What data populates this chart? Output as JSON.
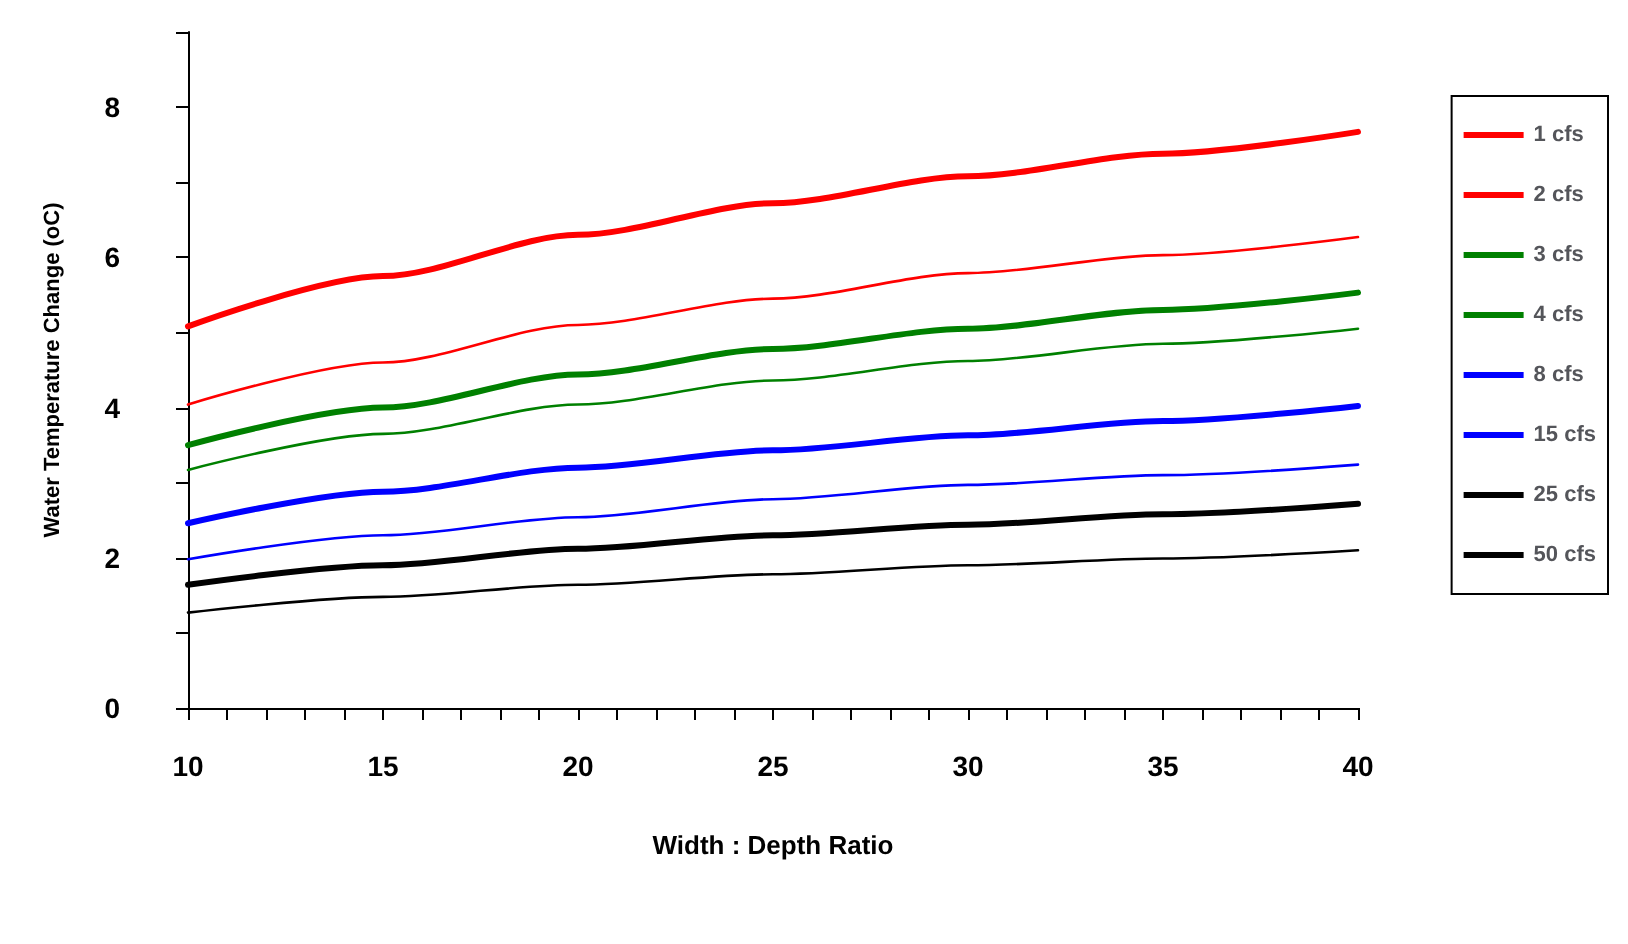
{
  "chart_data": {
    "type": "line",
    "xlabel": "Width : Depth Ratio",
    "ylabel": "Water Temperature Change (oC)",
    "x": [
      10,
      15,
      20,
      25,
      30,
      35,
      40
    ],
    "series": [
      {
        "name": "1 cfs",
        "color": "#ff0000",
        "values": [
          5.08,
          5.75,
          6.3,
          6.72,
          7.08,
          7.38,
          7.67
        ]
      },
      {
        "name": "2 cfs",
        "color": "#ff0000",
        "values": [
          4.04,
          4.6,
          5.1,
          5.45,
          5.79,
          6.03,
          6.27
        ]
      },
      {
        "name": "3 cfs",
        "color": "#008000",
        "values": [
          3.5,
          4.0,
          4.44,
          4.78,
          5.05,
          5.3,
          5.53
        ]
      },
      {
        "name": "4 cfs",
        "color": "#008000",
        "values": [
          3.17,
          3.65,
          4.04,
          4.36,
          4.62,
          4.85,
          5.05
        ]
      },
      {
        "name": "8 cfs",
        "color": "#0000ff",
        "values": [
          2.46,
          2.88,
          3.2,
          3.43,
          3.63,
          3.82,
          4.02
        ]
      },
      {
        "name": "15 cfs",
        "color": "#0000ff",
        "values": [
          1.98,
          2.3,
          2.54,
          2.78,
          2.97,
          3.1,
          3.24
        ]
      },
      {
        "name": "25 cfs",
        "color": "#000000",
        "values": [
          1.64,
          1.9,
          2.12,
          2.3,
          2.44,
          2.58,
          2.72
        ]
      },
      {
        "name": "50 cfs",
        "color": "#000000",
        "values": [
          1.27,
          1.48,
          1.64,
          1.78,
          1.9,
          1.99,
          2.1
        ]
      }
    ],
    "xlim": [
      10,
      40
    ],
    "xticks": [
      10,
      {
        "value": 11,
        "label": null
      },
      {
        "value": 12,
        "label": null
      },
      {
        "value": 13,
        "label": null
      },
      {
        "value": 14,
        "label": null
      },
      15,
      {
        "value": 16,
        "label": null
      },
      {
        "value": 17,
        "label": null
      },
      {
        "value": 18,
        "label": null
      },
      {
        "value": 19,
        "label": null
      },
      20,
      {
        "value": 21,
        "label": null
      },
      {
        "value": 22,
        "label": null
      },
      {
        "value": 23,
        "label": null
      },
      {
        "value": 24,
        "label": null
      },
      25,
      {
        "value": 26,
        "label": null
      },
      {
        "value": 27,
        "label": null
      },
      {
        "value": 28,
        "label": null
      },
      {
        "value": 29,
        "label": null
      },
      30,
      {
        "value": 31,
        "label": null
      },
      {
        "value": 32,
        "label": null
      },
      {
        "value": 33,
        "label": null
      },
      {
        "value": 34,
        "label": null
      },
      35,
      {
        "value": 36,
        "label": null
      },
      {
        "value": 37,
        "label": null
      },
      {
        "value": 38,
        "label": null
      },
      {
        "value": 39,
        "label": null
      },
      40
    ],
    "ylim": [
      0,
      9
    ],
    "yticks": [
      0,
      {
        "value": 1,
        "label": null
      },
      2,
      {
        "value": 3,
        "label": null
      },
      4,
      {
        "value": 5,
        "label": null
      },
      6,
      {
        "value": 7,
        "label": null
      },
      8,
      {
        "value": 9,
        "label": null
      }
    ],
    "grid": false,
    "legend": "right",
    "marker": "none",
    "line_style": "solid"
  }
}
